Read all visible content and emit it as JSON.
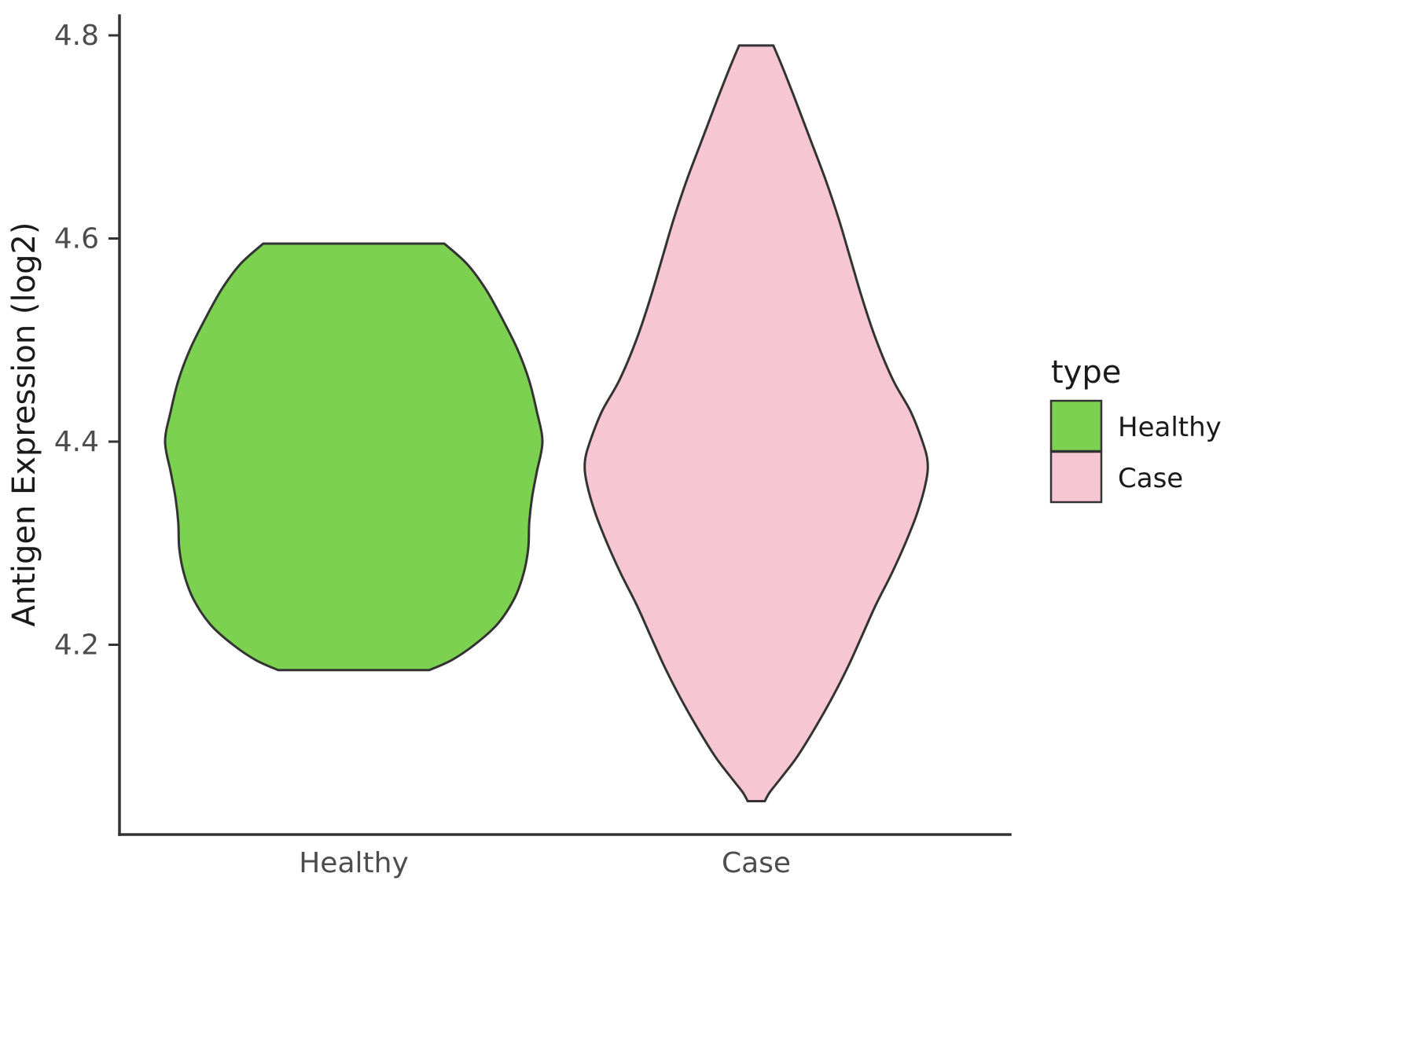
{
  "chart_data": {
    "type": "violin",
    "title": "",
    "xlabel": "",
    "ylabel": "Antigen Expression (log2)",
    "categories": [
      "Healthy",
      "Case"
    ],
    "ytick_values": [
      4.2,
      4.4,
      4.6,
      4.8
    ],
    "ytick_labels": [
      "4.2",
      "4.4",
      "4.6",
      "4.8"
    ],
    "ylim": [
      4.02,
      4.83
    ],
    "grid": "off",
    "legend": {
      "title": "type",
      "position": "right",
      "entries": [
        {
          "label": "Healthy",
          "color": "#7cd250"
        },
        {
          "label": "Case",
          "color": "#f6c6d2"
        }
      ]
    },
    "colors": {
      "outline": "#333333",
      "axis_line": "#333333",
      "axis_text": "#4d4d4d",
      "title_text": "#1a1a1a"
    },
    "series": [
      {
        "name": "Healthy",
        "fill": "#7cd250",
        "value_range": [
          4.175,
          4.595
        ],
        "density_profile": [
          [
            4.595,
            0.48
          ],
          [
            4.575,
            0.6
          ],
          [
            4.55,
            0.7
          ],
          [
            4.52,
            0.79
          ],
          [
            4.49,
            0.87
          ],
          [
            4.46,
            0.93
          ],
          [
            4.43,
            0.97
          ],
          [
            4.4,
            1.0
          ],
          [
            4.37,
            0.97
          ],
          [
            4.345,
            0.945
          ],
          [
            4.32,
            0.93
          ],
          [
            4.295,
            0.925
          ],
          [
            4.27,
            0.9
          ],
          [
            4.245,
            0.85
          ],
          [
            4.22,
            0.76
          ],
          [
            4.2,
            0.64
          ],
          [
            4.185,
            0.52
          ],
          [
            4.175,
            0.4
          ]
        ]
      },
      {
        "name": "Case",
        "fill": "#f6c6d2",
        "value_range": [
          4.046,
          4.79
        ],
        "density_profile": [
          [
            4.79,
            0.1
          ],
          [
            4.77,
            0.15
          ],
          [
            4.74,
            0.22
          ],
          [
            4.7,
            0.31
          ],
          [
            4.66,
            0.4
          ],
          [
            4.62,
            0.48
          ],
          [
            4.58,
            0.55
          ],
          [
            4.54,
            0.62
          ],
          [
            4.5,
            0.7
          ],
          [
            4.46,
            0.8
          ],
          [
            4.43,
            0.9
          ],
          [
            4.4,
            0.97
          ],
          [
            4.38,
            1.0
          ],
          [
            4.36,
            0.99
          ],
          [
            4.33,
            0.94
          ],
          [
            4.3,
            0.87
          ],
          [
            4.27,
            0.79
          ],
          [
            4.24,
            0.7
          ],
          [
            4.21,
            0.62
          ],
          [
            4.18,
            0.54
          ],
          [
            4.15,
            0.45
          ],
          [
            4.12,
            0.35
          ],
          [
            4.09,
            0.24
          ],
          [
            4.07,
            0.15
          ],
          [
            4.055,
            0.08
          ],
          [
            4.046,
            0.05
          ]
        ]
      }
    ]
  }
}
